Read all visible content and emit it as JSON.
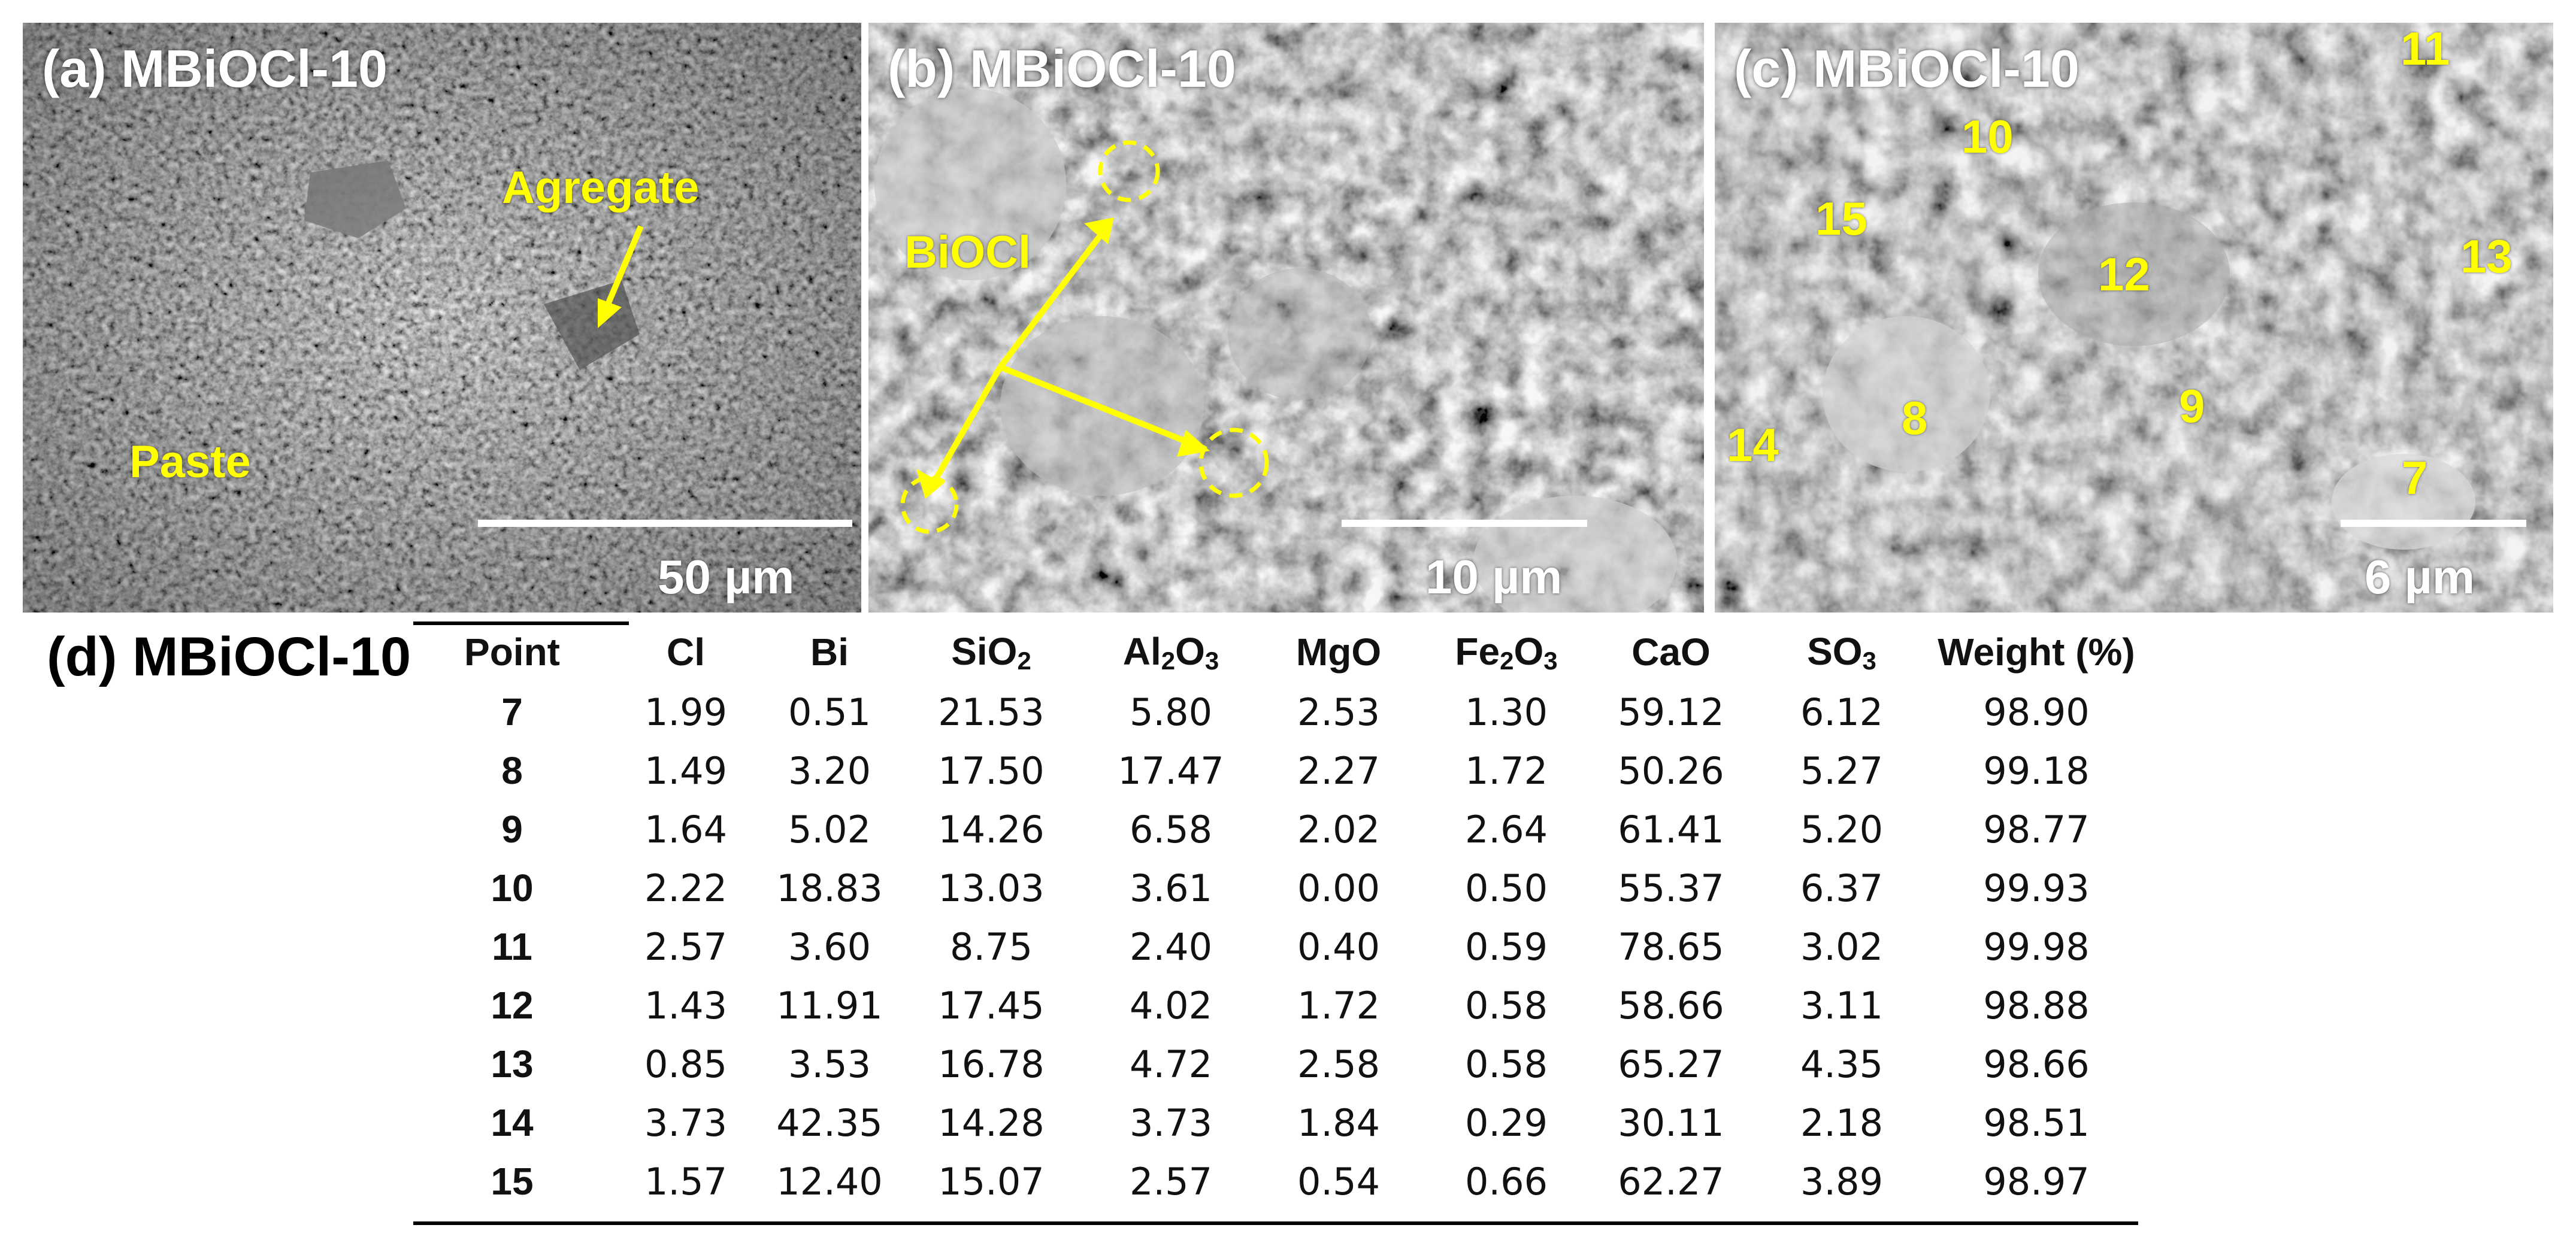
{
  "figure": {
    "panels": [
      {
        "title": "(a) MBiOCl-10",
        "scale_label": "50 µm",
        "annotations": {
          "aggregate": "Agregate",
          "paste": "Paste"
        }
      },
      {
        "title": "(b) MBiOCl-10",
        "scale_label": "10 µm",
        "annotations": {
          "biocl": "BiOCl"
        }
      },
      {
        "title": "(c) MBiOCl-10",
        "scale_label": "6 µm",
        "points": [
          "7",
          "8",
          "9",
          "10",
          "11",
          "12",
          "13",
          "14",
          "15"
        ]
      }
    ],
    "table": {
      "title": "(d) MBiOCl-10",
      "headers": {
        "point": "Point",
        "cl": "Cl",
        "bi": "Bi",
        "sio2_base": "SiO",
        "sio2_sub": "2",
        "al2o3_a": "Al",
        "al2o3_s1": "2",
        "al2o3_b": "O",
        "al2o3_s2": "3",
        "mgo": "MgO",
        "fe2o3_a": "Fe",
        "fe2o3_s1": "2",
        "fe2o3_b": "O",
        "fe2o3_s2": "3",
        "cao": "CaO",
        "so3_base": "SO",
        "so3_sub": "3",
        "weight": "Weight (%)"
      },
      "rows": [
        [
          "7",
          "1.99",
          "0.51",
          "21.53",
          "5.80",
          "2.53",
          "1.30",
          "59.12",
          "6.12",
          "98.90"
        ],
        [
          "8",
          "1.49",
          "3.20",
          "17.50",
          "17.47",
          "2.27",
          "1.72",
          "50.26",
          "5.27",
          "99.18"
        ],
        [
          "9",
          "1.64",
          "5.02",
          "14.26",
          "6.58",
          "2.02",
          "2.64",
          "61.41",
          "5.20",
          "98.77"
        ],
        [
          "10",
          "2.22",
          "18.83",
          "13.03",
          "3.61",
          "0.00",
          "0.50",
          "55.37",
          "6.37",
          "99.93"
        ],
        [
          "11",
          "2.57",
          "3.60",
          "8.75",
          "2.40",
          "0.40",
          "0.59",
          "78.65",
          "3.02",
          "99.98"
        ],
        [
          "12",
          "1.43",
          "11.91",
          "17.45",
          "4.02",
          "1.72",
          "0.58",
          "58.66",
          "3.11",
          "98.88"
        ],
        [
          "13",
          "0.85",
          "3.53",
          "16.78",
          "4.72",
          "2.58",
          "0.58",
          "65.27",
          "4.35",
          "98.66"
        ],
        [
          "14",
          "3.73",
          "42.35",
          "14.28",
          "3.73",
          "1.84",
          "0.29",
          "30.11",
          "2.18",
          "98.51"
        ],
        [
          "15",
          "1.57",
          "12.40",
          "15.07",
          "2.57",
          "0.54",
          "0.66",
          "62.27",
          "3.89",
          "98.97"
        ]
      ]
    },
    "colors": {
      "annotation": "#ffff00",
      "scalebar": "#ffffff"
    }
  }
}
